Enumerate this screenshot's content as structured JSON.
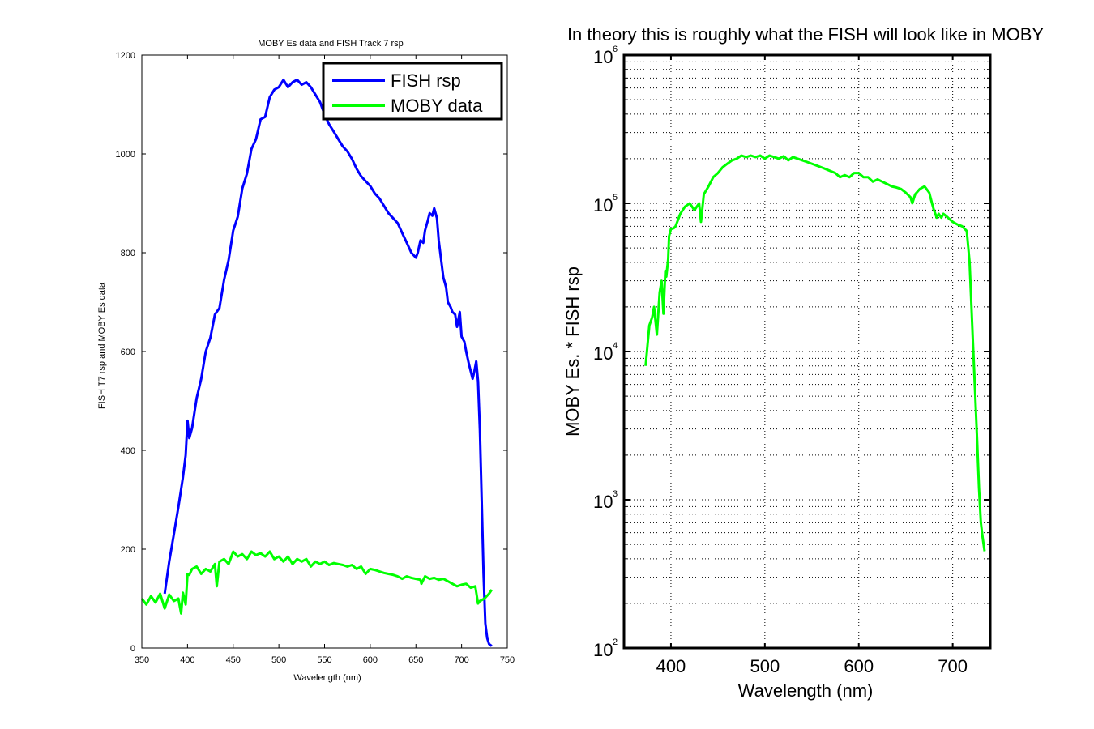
{
  "colors": {
    "fish": "#0000ff",
    "moby": "#00ff00",
    "axis": "#000000",
    "grid": "#000000",
    "background": "#ffffff"
  },
  "chart_data": [
    {
      "type": "line",
      "title": "MOBY Es data and FISH Track 7 rsp",
      "xlabel": "Wavelength (nm)",
      "ylabel": "FISH T7 rsp and MOBY Es data",
      "xlim": [
        350,
        750
      ],
      "ylim": [
        0,
        1200
      ],
      "x_ticks": [
        350,
        400,
        450,
        500,
        550,
        600,
        650,
        700,
        750
      ],
      "y_ticks": [
        0,
        200,
        400,
        600,
        800,
        1000,
        1200
      ],
      "x_tick_labels": [
        "350",
        "400",
        "450",
        "500",
        "550",
        "600",
        "650",
        "700",
        "750"
      ],
      "y_tick_labels": [
        "0",
        "200",
        "400",
        "600",
        "800",
        "1000",
        "1200"
      ],
      "grid": false,
      "legend_position": "top-right",
      "series": [
        {
          "name": "FISH rsp",
          "color": "#0000ff",
          "x": [
            375,
            380,
            385,
            390,
            395,
            398,
            400,
            402,
            405,
            410,
            415,
            420,
            425,
            430,
            435,
            440,
            445,
            450,
            455,
            460,
            465,
            470,
            475,
            480,
            485,
            490,
            495,
            500,
            505,
            510,
            515,
            520,
            525,
            530,
            535,
            540,
            545,
            550,
            555,
            560,
            565,
            570,
            575,
            580,
            585,
            590,
            595,
            600,
            605,
            610,
            615,
            620,
            625,
            630,
            635,
            640,
            645,
            650,
            652,
            655,
            658,
            660,
            663,
            665,
            668,
            670,
            673,
            675,
            678,
            680,
            683,
            685,
            688,
            690,
            693,
            695,
            698,
            700,
            703,
            705,
            708,
            710,
            712,
            714,
            716,
            718,
            720,
            722,
            724,
            726,
            728,
            730,
            733
          ],
          "y": [
            110,
            175,
            230,
            285,
            345,
            390,
            460,
            425,
            445,
            505,
            545,
            600,
            628,
            675,
            688,
            745,
            785,
            845,
            873,
            930,
            960,
            1010,
            1030,
            1070,
            1075,
            1115,
            1130,
            1135,
            1150,
            1135,
            1145,
            1150,
            1140,
            1145,
            1135,
            1120,
            1105,
            1080,
            1060,
            1045,
            1030,
            1015,
            1005,
            990,
            970,
            955,
            945,
            935,
            920,
            910,
            895,
            880,
            870,
            860,
            840,
            820,
            800,
            790,
            800,
            825,
            820,
            845,
            865,
            880,
            875,
            890,
            870,
            825,
            780,
            750,
            730,
            700,
            690,
            680,
            675,
            650,
            680,
            630,
            620,
            600,
            575,
            560,
            545,
            560,
            580,
            540,
            440,
            300,
            150,
            50,
            20,
            8,
            4
          ]
        },
        {
          "name": "MOBY data",
          "color": "#00ff00",
          "x": [
            350,
            355,
            360,
            365,
            370,
            375,
            380,
            385,
            390,
            393,
            395,
            398,
            400,
            402,
            405,
            410,
            415,
            420,
            425,
            430,
            432,
            435,
            440,
            445,
            450,
            455,
            460,
            465,
            470,
            475,
            480,
            485,
            490,
            495,
            500,
            505,
            510,
            515,
            520,
            525,
            530,
            535,
            540,
            545,
            550,
            555,
            560,
            565,
            570,
            575,
            580,
            585,
            590,
            595,
            600,
            605,
            610,
            615,
            620,
            625,
            630,
            635,
            640,
            645,
            650,
            655,
            656,
            660,
            665,
            670,
            675,
            680,
            685,
            690,
            695,
            700,
            705,
            710,
            715,
            718,
            720,
            725,
            730,
            733
          ],
          "y": [
            100,
            88,
            105,
            92,
            110,
            80,
            108,
            95,
            100,
            70,
            112,
            88,
            150,
            148,
            160,
            165,
            150,
            160,
            155,
            170,
            125,
            175,
            180,
            170,
            195,
            185,
            190,
            180,
            195,
            188,
            192,
            185,
            195,
            180,
            185,
            175,
            185,
            170,
            180,
            175,
            180,
            165,
            175,
            170,
            175,
            168,
            172,
            170,
            168,
            165,
            168,
            160,
            165,
            150,
            160,
            158,
            155,
            152,
            150,
            148,
            145,
            140,
            145,
            142,
            140,
            138,
            130,
            145,
            140,
            142,
            138,
            140,
            135,
            130,
            125,
            128,
            130,
            122,
            125,
            90,
            95,
            100,
            110,
            118
          ]
        }
      ]
    },
    {
      "type": "line",
      "title": "In theory this is roughly what the FISH will look like in MOBY",
      "xlabel": "Wavelength (nm)",
      "ylabel": "MOBY Es. * FISH rsp",
      "xlim": [
        350,
        740
      ],
      "ylim": [
        100,
        1000000
      ],
      "y_scale": "log",
      "x_ticks": [
        400,
        500,
        600,
        700
      ],
      "x_tick_labels": [
        "400",
        "500",
        "600",
        "700"
      ],
      "y_ticks": [
        100,
        1000,
        10000,
        100000,
        1000000
      ],
      "y_tick_base": "10",
      "y_tick_exponents": [
        "2",
        "3",
        "4",
        "5",
        "6"
      ],
      "grid": true,
      "series": [
        {
          "color": "#00ff00",
          "x": [
            373,
            375,
            377,
            380,
            382,
            385,
            388,
            390,
            392,
            394,
            395,
            397,
            398,
            400,
            403,
            405,
            410,
            415,
            420,
            425,
            430,
            432,
            435,
            440,
            445,
            450,
            455,
            460,
            465,
            470,
            475,
            480,
            485,
            490,
            495,
            500,
            505,
            510,
            515,
            520,
            525,
            530,
            535,
            540,
            545,
            550,
            555,
            560,
            565,
            570,
            575,
            580,
            585,
            590,
            595,
            600,
            605,
            610,
            615,
            620,
            625,
            630,
            635,
            640,
            645,
            650,
            655,
            657,
            660,
            665,
            670,
            675,
            678,
            680,
            683,
            685,
            688,
            690,
            695,
            700,
            705,
            710,
            715,
            718,
            720,
            722,
            724,
            726,
            728,
            730,
            732,
            734
          ],
          "y": [
            8000,
            11000,
            15000,
            17000,
            20000,
            13000,
            25000,
            30000,
            18000,
            35000,
            32000,
            42000,
            60000,
            67000,
            68000,
            70000,
            85000,
            95000,
            100000,
            90000,
            100000,
            75000,
            115000,
            130000,
            150000,
            160000,
            175000,
            185000,
            195000,
            200000,
            210000,
            205000,
            210000,
            205000,
            210000,
            200000,
            210000,
            205000,
            200000,
            208000,
            195000,
            205000,
            200000,
            195000,
            190000,
            185000,
            180000,
            175000,
            170000,
            165000,
            160000,
            150000,
            155000,
            150000,
            160000,
            160000,
            150000,
            150000,
            140000,
            145000,
            140000,
            135000,
            130000,
            128000,
            125000,
            118000,
            110000,
            100000,
            115000,
            125000,
            130000,
            118000,
            100000,
            90000,
            80000,
            85000,
            80000,
            85000,
            80000,
            75000,
            72000,
            70000,
            65000,
            40000,
            20000,
            10000,
            5000,
            2500,
            1200,
            700,
            550,
            450
          ]
        }
      ]
    }
  ]
}
